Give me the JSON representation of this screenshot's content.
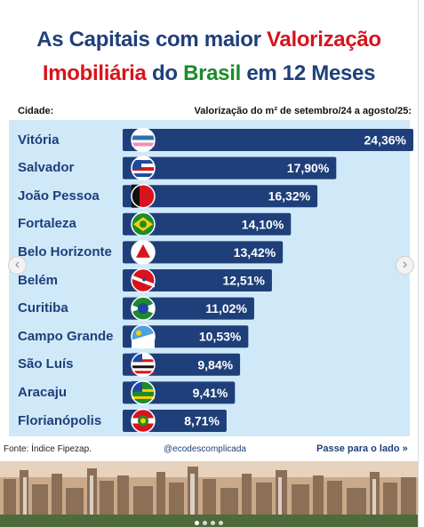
{
  "title": {
    "line1_a": "As Capitais com maior ",
    "line1_b": "Valorização",
    "line2_a": "Imobiliária",
    "line2_b": " do ",
    "line2_c": "Brasil",
    "line2_d": " em 12 Meses"
  },
  "header": {
    "city_label": "Cidade:",
    "value_label": "Valorização do m² de setembro/24 a agosto/25:"
  },
  "footer": {
    "source": "Fonte: Índice Fipezap.",
    "handle": "@ecodescomplicada",
    "swipe": "Passe para o lado »"
  },
  "nav": {
    "prev": "‹",
    "next": "›"
  },
  "colors": {
    "bar": "#1f3f7a",
    "panel": "#cfe9f8",
    "title_navy": "#1f3f7a",
    "title_red": "#d7141d",
    "title_green": "#1d8a2c"
  },
  "chart_data": {
    "type": "bar",
    "orientation": "horizontal",
    "categories": [
      "Vitória",
      "Salvador",
      "João Pessoa",
      "Fortaleza",
      "Belo Horizonte",
      "Belém",
      "Curitiba",
      "Campo Grande",
      "São Luís",
      "Aracaju",
      "Florianópolis"
    ],
    "values": [
      24.36,
      17.9,
      16.32,
      14.1,
      13.42,
      12.51,
      11.02,
      10.53,
      9.84,
      9.41,
      8.71
    ],
    "value_labels": [
      "24,36%",
      "17,90%",
      "16,32%",
      "14,10%",
      "13,42%",
      "12,51%",
      "11,02%",
      "10,53%",
      "9,84%",
      "9,41%",
      "8,71%"
    ],
    "flag_icons": [
      "flag-espirito-santo-icon",
      "flag-bahia-icon",
      "flag-paraiba-icon",
      "flag-ceara-icon",
      "flag-minas-gerais-icon",
      "flag-para-icon",
      "flag-parana-icon",
      "flag-mato-grosso-do-sul-icon",
      "flag-maranhao-icon",
      "flag-sergipe-icon",
      "flag-santa-catarina-icon"
    ],
    "xlim": [
      0,
      24.36
    ],
    "grid": false,
    "legend": "none"
  }
}
